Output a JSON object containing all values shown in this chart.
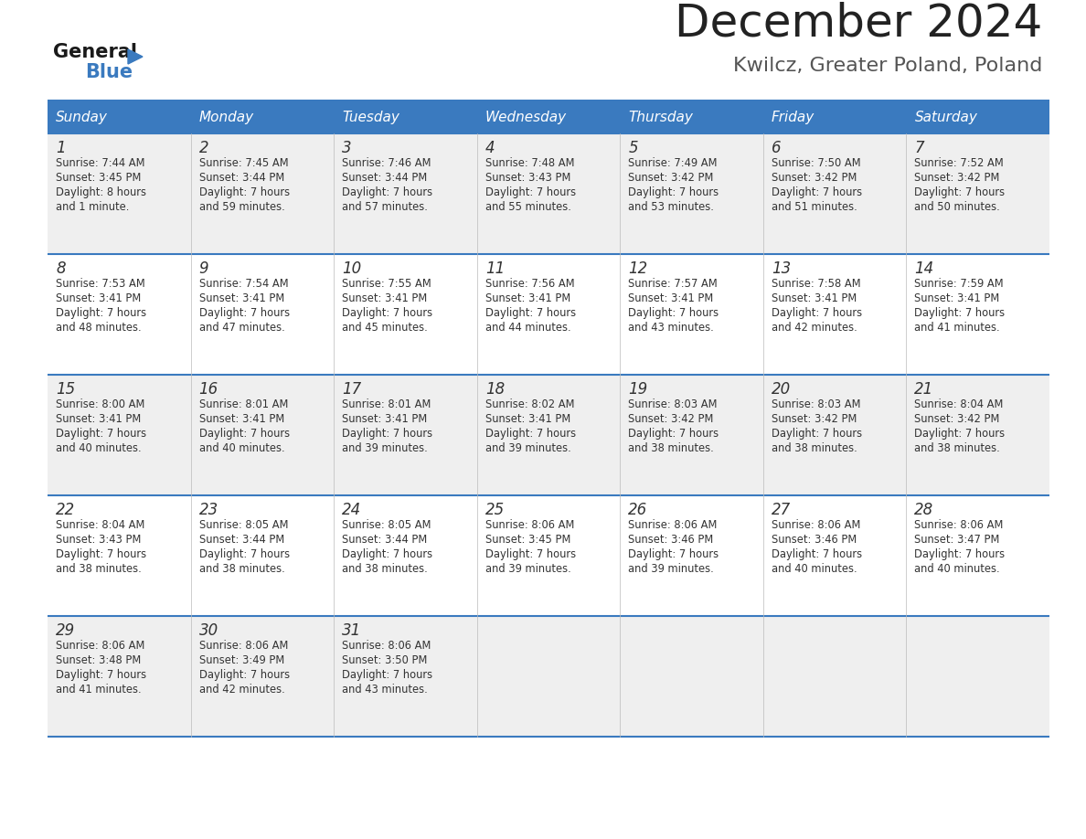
{
  "title": "December 2024",
  "subtitle": "Kwilcz, Greater Poland, Poland",
  "days_of_week": [
    "Sunday",
    "Monday",
    "Tuesday",
    "Wednesday",
    "Thursday",
    "Friday",
    "Saturday"
  ],
  "header_bg": "#3a7abf",
  "header_text": "#ffffff",
  "row_bg_odd": "#efefef",
  "row_bg_even": "#ffffff",
  "separator_color": "#3a7abf",
  "day_num_color": "#333333",
  "cell_text_color": "#333333",
  "title_color": "#222222",
  "subtitle_color": "#555555",
  "calendar_data": [
    [
      {
        "day": 1,
        "sunrise": "7:44 AM",
        "sunset": "3:45 PM",
        "daylight_line1": "Daylight: 8 hours",
        "daylight_line2": "and 1 minute."
      },
      {
        "day": 2,
        "sunrise": "7:45 AM",
        "sunset": "3:44 PM",
        "daylight_line1": "Daylight: 7 hours",
        "daylight_line2": "and 59 minutes."
      },
      {
        "day": 3,
        "sunrise": "7:46 AM",
        "sunset": "3:44 PM",
        "daylight_line1": "Daylight: 7 hours",
        "daylight_line2": "and 57 minutes."
      },
      {
        "day": 4,
        "sunrise": "7:48 AM",
        "sunset": "3:43 PM",
        "daylight_line1": "Daylight: 7 hours",
        "daylight_line2": "and 55 minutes."
      },
      {
        "day": 5,
        "sunrise": "7:49 AM",
        "sunset": "3:42 PM",
        "daylight_line1": "Daylight: 7 hours",
        "daylight_line2": "and 53 minutes."
      },
      {
        "day": 6,
        "sunrise": "7:50 AM",
        "sunset": "3:42 PM",
        "daylight_line1": "Daylight: 7 hours",
        "daylight_line2": "and 51 minutes."
      },
      {
        "day": 7,
        "sunrise": "7:52 AM",
        "sunset": "3:42 PM",
        "daylight_line1": "Daylight: 7 hours",
        "daylight_line2": "and 50 minutes."
      }
    ],
    [
      {
        "day": 8,
        "sunrise": "7:53 AM",
        "sunset": "3:41 PM",
        "daylight_line1": "Daylight: 7 hours",
        "daylight_line2": "and 48 minutes."
      },
      {
        "day": 9,
        "sunrise": "7:54 AM",
        "sunset": "3:41 PM",
        "daylight_line1": "Daylight: 7 hours",
        "daylight_line2": "and 47 minutes."
      },
      {
        "day": 10,
        "sunrise": "7:55 AM",
        "sunset": "3:41 PM",
        "daylight_line1": "Daylight: 7 hours",
        "daylight_line2": "and 45 minutes."
      },
      {
        "day": 11,
        "sunrise": "7:56 AM",
        "sunset": "3:41 PM",
        "daylight_line1": "Daylight: 7 hours",
        "daylight_line2": "and 44 minutes."
      },
      {
        "day": 12,
        "sunrise": "7:57 AM",
        "sunset": "3:41 PM",
        "daylight_line1": "Daylight: 7 hours",
        "daylight_line2": "and 43 minutes."
      },
      {
        "day": 13,
        "sunrise": "7:58 AM",
        "sunset": "3:41 PM",
        "daylight_line1": "Daylight: 7 hours",
        "daylight_line2": "and 42 minutes."
      },
      {
        "day": 14,
        "sunrise": "7:59 AM",
        "sunset": "3:41 PM",
        "daylight_line1": "Daylight: 7 hours",
        "daylight_line2": "and 41 minutes."
      }
    ],
    [
      {
        "day": 15,
        "sunrise": "8:00 AM",
        "sunset": "3:41 PM",
        "daylight_line1": "Daylight: 7 hours",
        "daylight_line2": "and 40 minutes."
      },
      {
        "day": 16,
        "sunrise": "8:01 AM",
        "sunset": "3:41 PM",
        "daylight_line1": "Daylight: 7 hours",
        "daylight_line2": "and 40 minutes."
      },
      {
        "day": 17,
        "sunrise": "8:01 AM",
        "sunset": "3:41 PM",
        "daylight_line1": "Daylight: 7 hours",
        "daylight_line2": "and 39 minutes."
      },
      {
        "day": 18,
        "sunrise": "8:02 AM",
        "sunset": "3:41 PM",
        "daylight_line1": "Daylight: 7 hours",
        "daylight_line2": "and 39 minutes."
      },
      {
        "day": 19,
        "sunrise": "8:03 AM",
        "sunset": "3:42 PM",
        "daylight_line1": "Daylight: 7 hours",
        "daylight_line2": "and 38 minutes."
      },
      {
        "day": 20,
        "sunrise": "8:03 AM",
        "sunset": "3:42 PM",
        "daylight_line1": "Daylight: 7 hours",
        "daylight_line2": "and 38 minutes."
      },
      {
        "day": 21,
        "sunrise": "8:04 AM",
        "sunset": "3:42 PM",
        "daylight_line1": "Daylight: 7 hours",
        "daylight_line2": "and 38 minutes."
      }
    ],
    [
      {
        "day": 22,
        "sunrise": "8:04 AM",
        "sunset": "3:43 PM",
        "daylight_line1": "Daylight: 7 hours",
        "daylight_line2": "and 38 minutes."
      },
      {
        "day": 23,
        "sunrise": "8:05 AM",
        "sunset": "3:44 PM",
        "daylight_line1": "Daylight: 7 hours",
        "daylight_line2": "and 38 minutes."
      },
      {
        "day": 24,
        "sunrise": "8:05 AM",
        "sunset": "3:44 PM",
        "daylight_line1": "Daylight: 7 hours",
        "daylight_line2": "and 38 minutes."
      },
      {
        "day": 25,
        "sunrise": "8:06 AM",
        "sunset": "3:45 PM",
        "daylight_line1": "Daylight: 7 hours",
        "daylight_line2": "and 39 minutes."
      },
      {
        "day": 26,
        "sunrise": "8:06 AM",
        "sunset": "3:46 PM",
        "daylight_line1": "Daylight: 7 hours",
        "daylight_line2": "and 39 minutes."
      },
      {
        "day": 27,
        "sunrise": "8:06 AM",
        "sunset": "3:46 PM",
        "daylight_line1": "Daylight: 7 hours",
        "daylight_line2": "and 40 minutes."
      },
      {
        "day": 28,
        "sunrise": "8:06 AM",
        "sunset": "3:47 PM",
        "daylight_line1": "Daylight: 7 hours",
        "daylight_line2": "and 40 minutes."
      }
    ],
    [
      {
        "day": 29,
        "sunrise": "8:06 AM",
        "sunset": "3:48 PM",
        "daylight_line1": "Daylight: 7 hours",
        "daylight_line2": "and 41 minutes."
      },
      {
        "day": 30,
        "sunrise": "8:06 AM",
        "sunset": "3:49 PM",
        "daylight_line1": "Daylight: 7 hours",
        "daylight_line2": "and 42 minutes."
      },
      {
        "day": 31,
        "sunrise": "8:06 AM",
        "sunset": "3:50 PM",
        "daylight_line1": "Daylight: 7 hours",
        "daylight_line2": "and 43 minutes."
      },
      null,
      null,
      null,
      null
    ]
  ]
}
